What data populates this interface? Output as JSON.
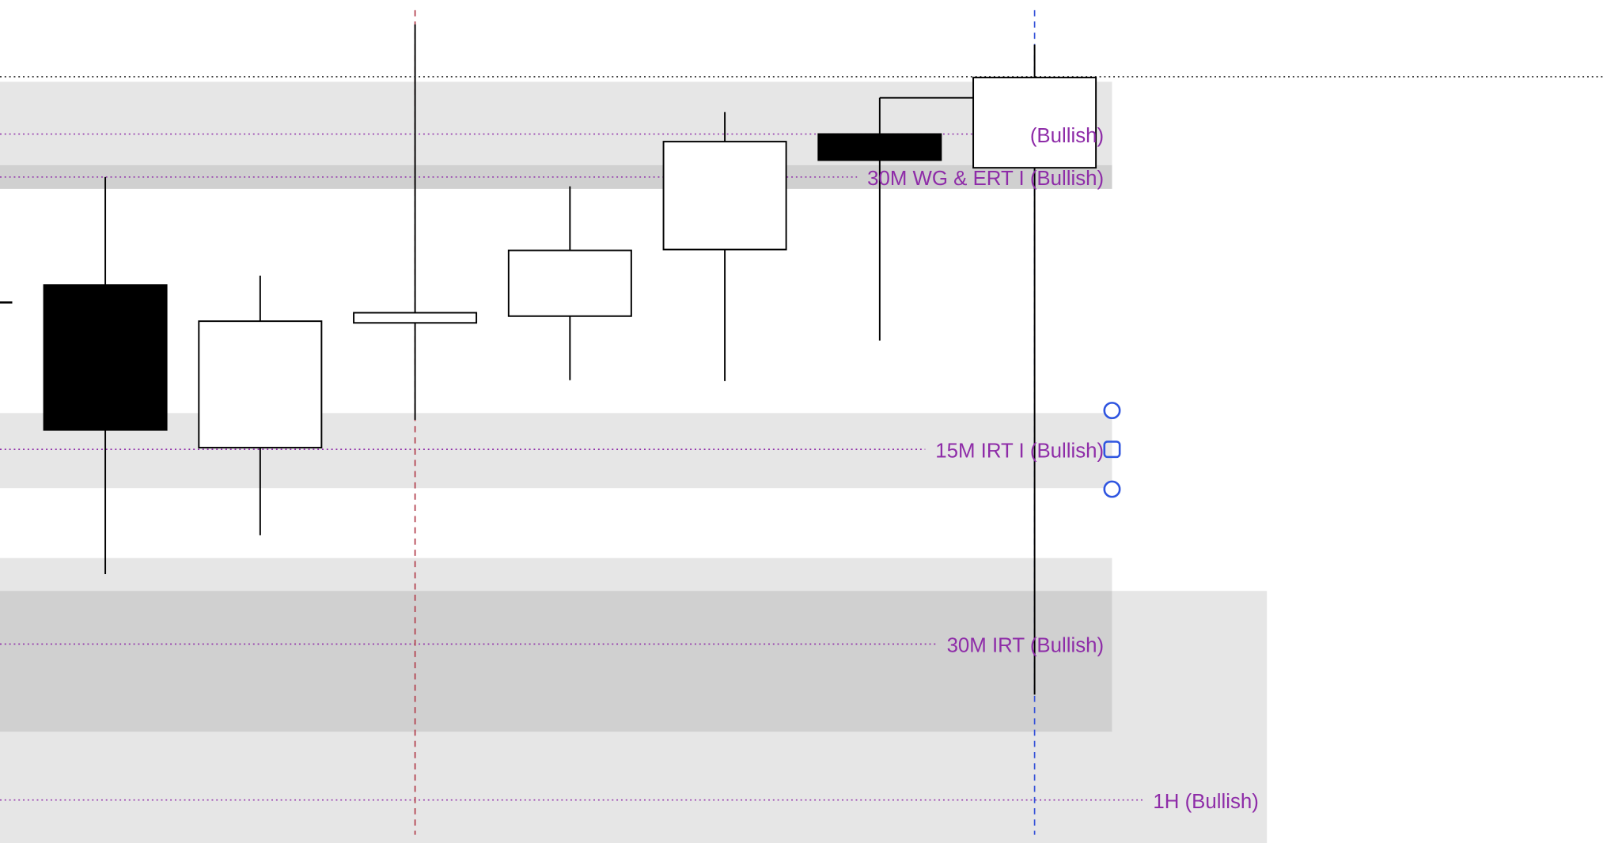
{
  "chart_data": {
    "type": "candlestick",
    "title": "",
    "xlabel": "",
    "ylabel": "",
    "ylim": [
      0,
      100
    ],
    "grid": false,
    "colors": {
      "bullish_body": "#ffffff",
      "bearish_body": "#000000",
      "outline": "#000000",
      "zone_light": "#e6e6e6",
      "zone_dark": "#d0d0d0",
      "level_line": "#8e2ca8",
      "label_text": "#8e2ca8",
      "red_marker": "#b03a48",
      "blue_marker": "#3350d8",
      "handle": "#2f55e0"
    },
    "candles": [
      {
        "open": 66.2,
        "high": 79.0,
        "low": 31.9,
        "close": 49.0
      },
      {
        "open": 46.9,
        "high": 67.3,
        "low": 36.5,
        "close": 61.9
      },
      {
        "open": 61.7,
        "high": 97.1,
        "low": 50.2,
        "close": 62.9
      },
      {
        "open": 62.5,
        "high": 77.9,
        "low": 54.9,
        "close": 70.3
      },
      {
        "open": 70.4,
        "high": 86.7,
        "low": 54.8,
        "close": 83.2
      },
      {
        "open": 84.1,
        "high": 88.4,
        "low": 59.6,
        "close": 81.0
      },
      {
        "open": 80.1,
        "high": 94.7,
        "low": 17.6,
        "close": 90.8
      }
    ],
    "zones": [
      {
        "top": 90.3,
        "bottom": 77.6,
        "shade": "light",
        "end_candle": 7.5
      },
      {
        "top": 80.4,
        "bottom": 77.6,
        "shade": "dark",
        "end_candle": 7.5
      },
      {
        "top": 51.0,
        "bottom": 42.1,
        "shade": "light",
        "end_candle": 7.5
      },
      {
        "top": 33.8,
        "bottom": 13.2,
        "shade": "light",
        "end_candle": 7.5
      },
      {
        "top": 29.9,
        "bottom": 0,
        "shade": "light",
        "end_candle": 8.5
      },
      {
        "top": 29.9,
        "bottom": 13.2,
        "shade": "dark",
        "end_candle": 7.5
      }
    ],
    "levels": [
      {
        "price": 84.1,
        "label": "(Bullish)",
        "end_candle": 7.5
      },
      {
        "price": 79.0,
        "label": "30M WG & ERT I (Bullish)",
        "end_candle": 7.5
      },
      {
        "price": 46.7,
        "label": "15M IRT I (Bullish)",
        "end_candle": 7.5
      },
      {
        "price": 23.6,
        "label": "30M IRT (Bullish)",
        "end_candle": 7.5
      },
      {
        "price": 5.1,
        "label": "1H (Bullish)",
        "end_candle": 8.5
      }
    ],
    "price_line": 90.9,
    "vertical_markers": [
      {
        "candle": 3,
        "color": "red"
      },
      {
        "candle": 7,
        "color": "blue"
      }
    ],
    "selected_level_handles": {
      "candle": 7.5,
      "price": 46.7
    }
  }
}
